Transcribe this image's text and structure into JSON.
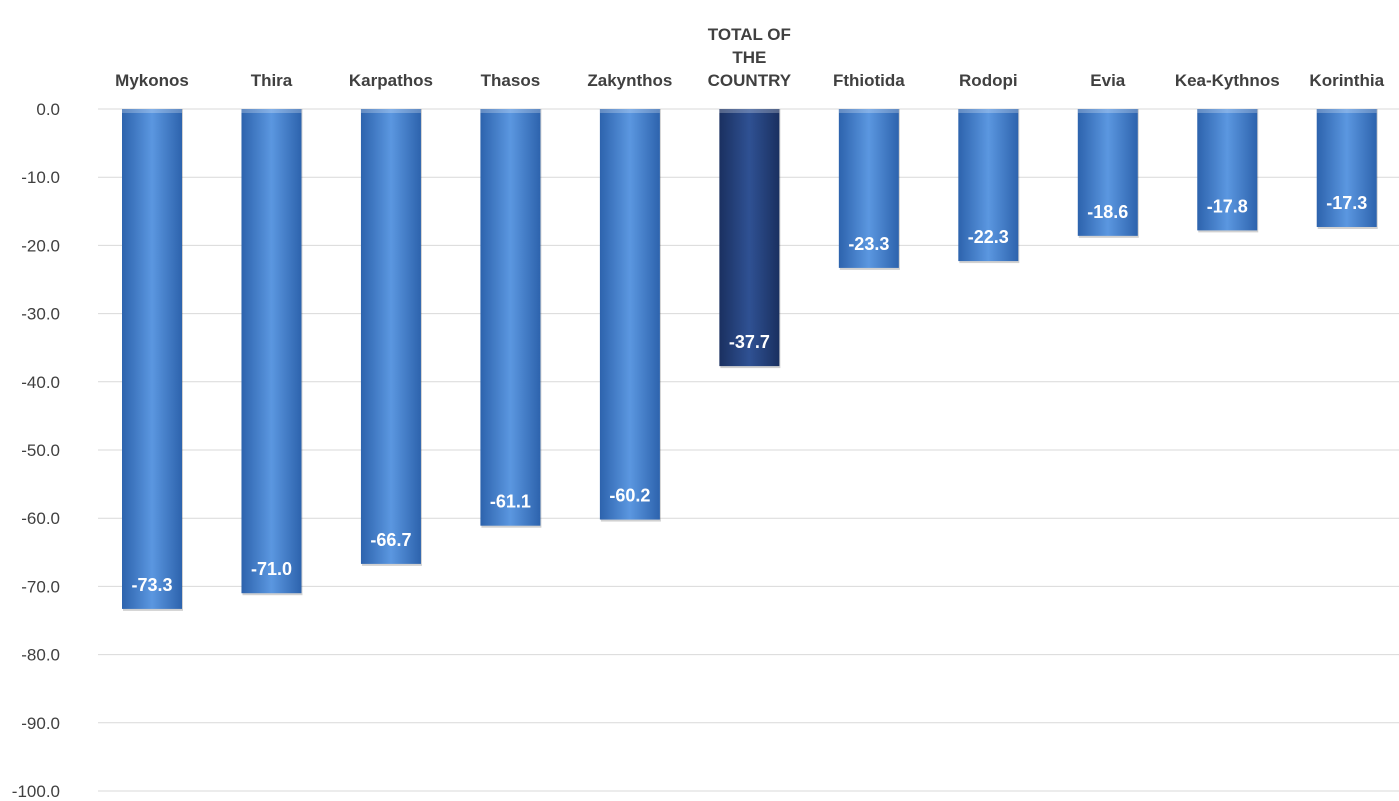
{
  "chart_data": {
    "type": "bar",
    "categories": [
      "Mykonos",
      "Thira",
      "Karpathos",
      "Thasos",
      "Zakynthos",
      "TOTAL OF THE COUNTRY",
      "Fthiotida",
      "Rodopi",
      "Evia",
      "Kea-Kythnos",
      "Korinthia"
    ],
    "category_label_lines": [
      [
        "Mykonos"
      ],
      [
        "Thira"
      ],
      [
        "Karpathos"
      ],
      [
        "Thasos"
      ],
      [
        "Zakynthos"
      ],
      [
        "TOTAL OF",
        "THE",
        "COUNTRY"
      ],
      [
        "Fthiotida"
      ],
      [
        "Rodopi"
      ],
      [
        "Evia"
      ],
      [
        "Kea-Kythnos"
      ],
      [
        "Korinthia"
      ]
    ],
    "values": [
      -73.3,
      -71.0,
      -66.7,
      -61.1,
      -60.2,
      -37.7,
      -23.3,
      -22.3,
      -18.6,
      -17.8,
      -17.3
    ],
    "data_labels": [
      "-73.3",
      "-71.0",
      "-66.7",
      "-61.1",
      "-60.2",
      "-37.7",
      "-23.3",
      "-22.3",
      "-18.6",
      "-17.8",
      "-17.3"
    ],
    "highlight_category": "TOTAL OF THE COUNTRY",
    "ylim": [
      -100,
      0
    ],
    "yticks": [
      0,
      -10,
      -20,
      -30,
      -40,
      -50,
      -60,
      -70,
      -80,
      -90,
      -100
    ],
    "ytick_labels": [
      "0.0",
      "-10.0",
      "-20.0",
      "-30.0",
      "-40.0",
      "-50.0",
      "-60.0",
      "-70.0",
      "-80.0",
      "-90.0",
      "-100.0"
    ],
    "x_axis_position": "top",
    "grid": true,
    "legend": "none",
    "title": "",
    "xlabel": "",
    "ylabel": "",
    "colors": {
      "bar": "#3d7fd4",
      "bar_light": "#5b97e0",
      "bar_dark": "#2d63ad",
      "highlight_bar": "#23407a",
      "highlight_bar_light": "#2f5193",
      "highlight_bar_dark": "#1a3060",
      "gridline": "#d9d9d9",
      "axis_text": "#404040",
      "data_label": "#ffffff"
    }
  }
}
